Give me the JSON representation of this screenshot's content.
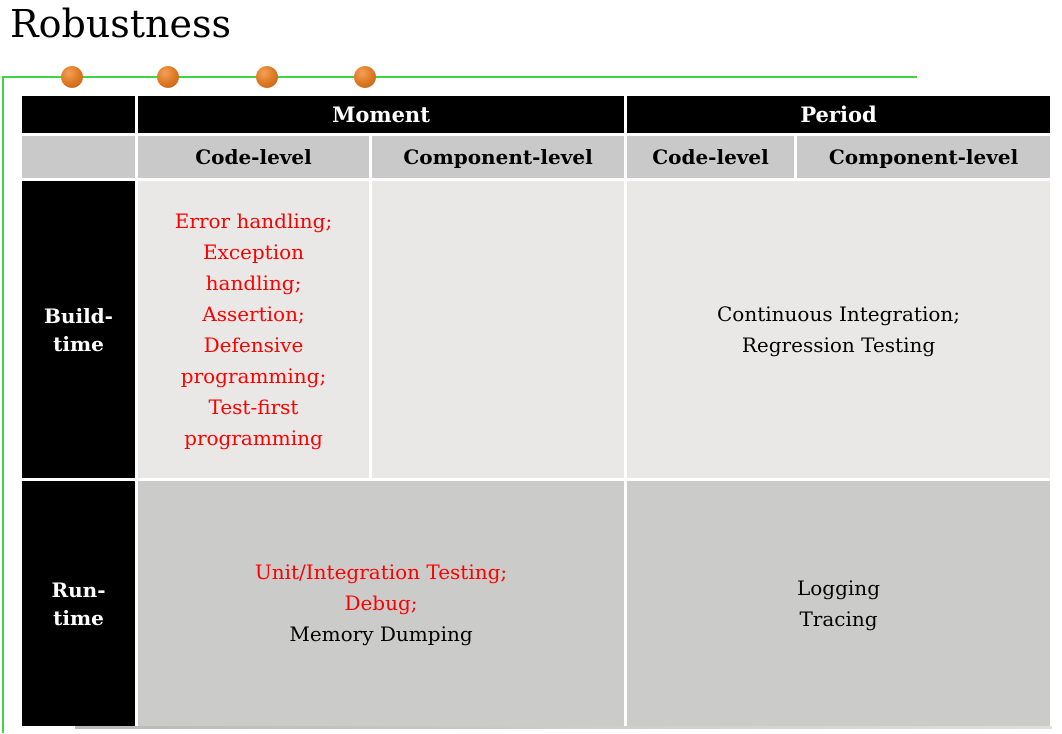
{
  "slide": {
    "title": "Robustness",
    "colors": {
      "accent_green": "#41d541",
      "dot_orange": "#d2691e",
      "header_black": "#000000",
      "subheader_gray": "#c9c9c9",
      "build_row_gray": "#e9e8e6",
      "run_row_gray": "#cbcbca",
      "highlight_red": "#fe0000"
    },
    "timeline_dot_count": 4
  },
  "table": {
    "columns": {
      "moment": "Moment",
      "period": "Period",
      "moment_code": "Code-level",
      "moment_component": "Component-level",
      "period_code": "Code-level",
      "period_component": "Component-level"
    },
    "build_row": {
      "label": "Build-\ntime",
      "moment_code": "Error handling;\nException\nhandling;\nAssertion;\nDefensive\nprogramming;\nTest-first\nprogramming",
      "moment_component": "",
      "period": "Continuous Integration;\nRegression Testing"
    },
    "run_row": {
      "label": "Run-\ntime",
      "moment_red": "Unit/Integration Testing;\nDebug;",
      "moment_black": "Memory Dumping",
      "period": "Logging\nTracing"
    }
  }
}
